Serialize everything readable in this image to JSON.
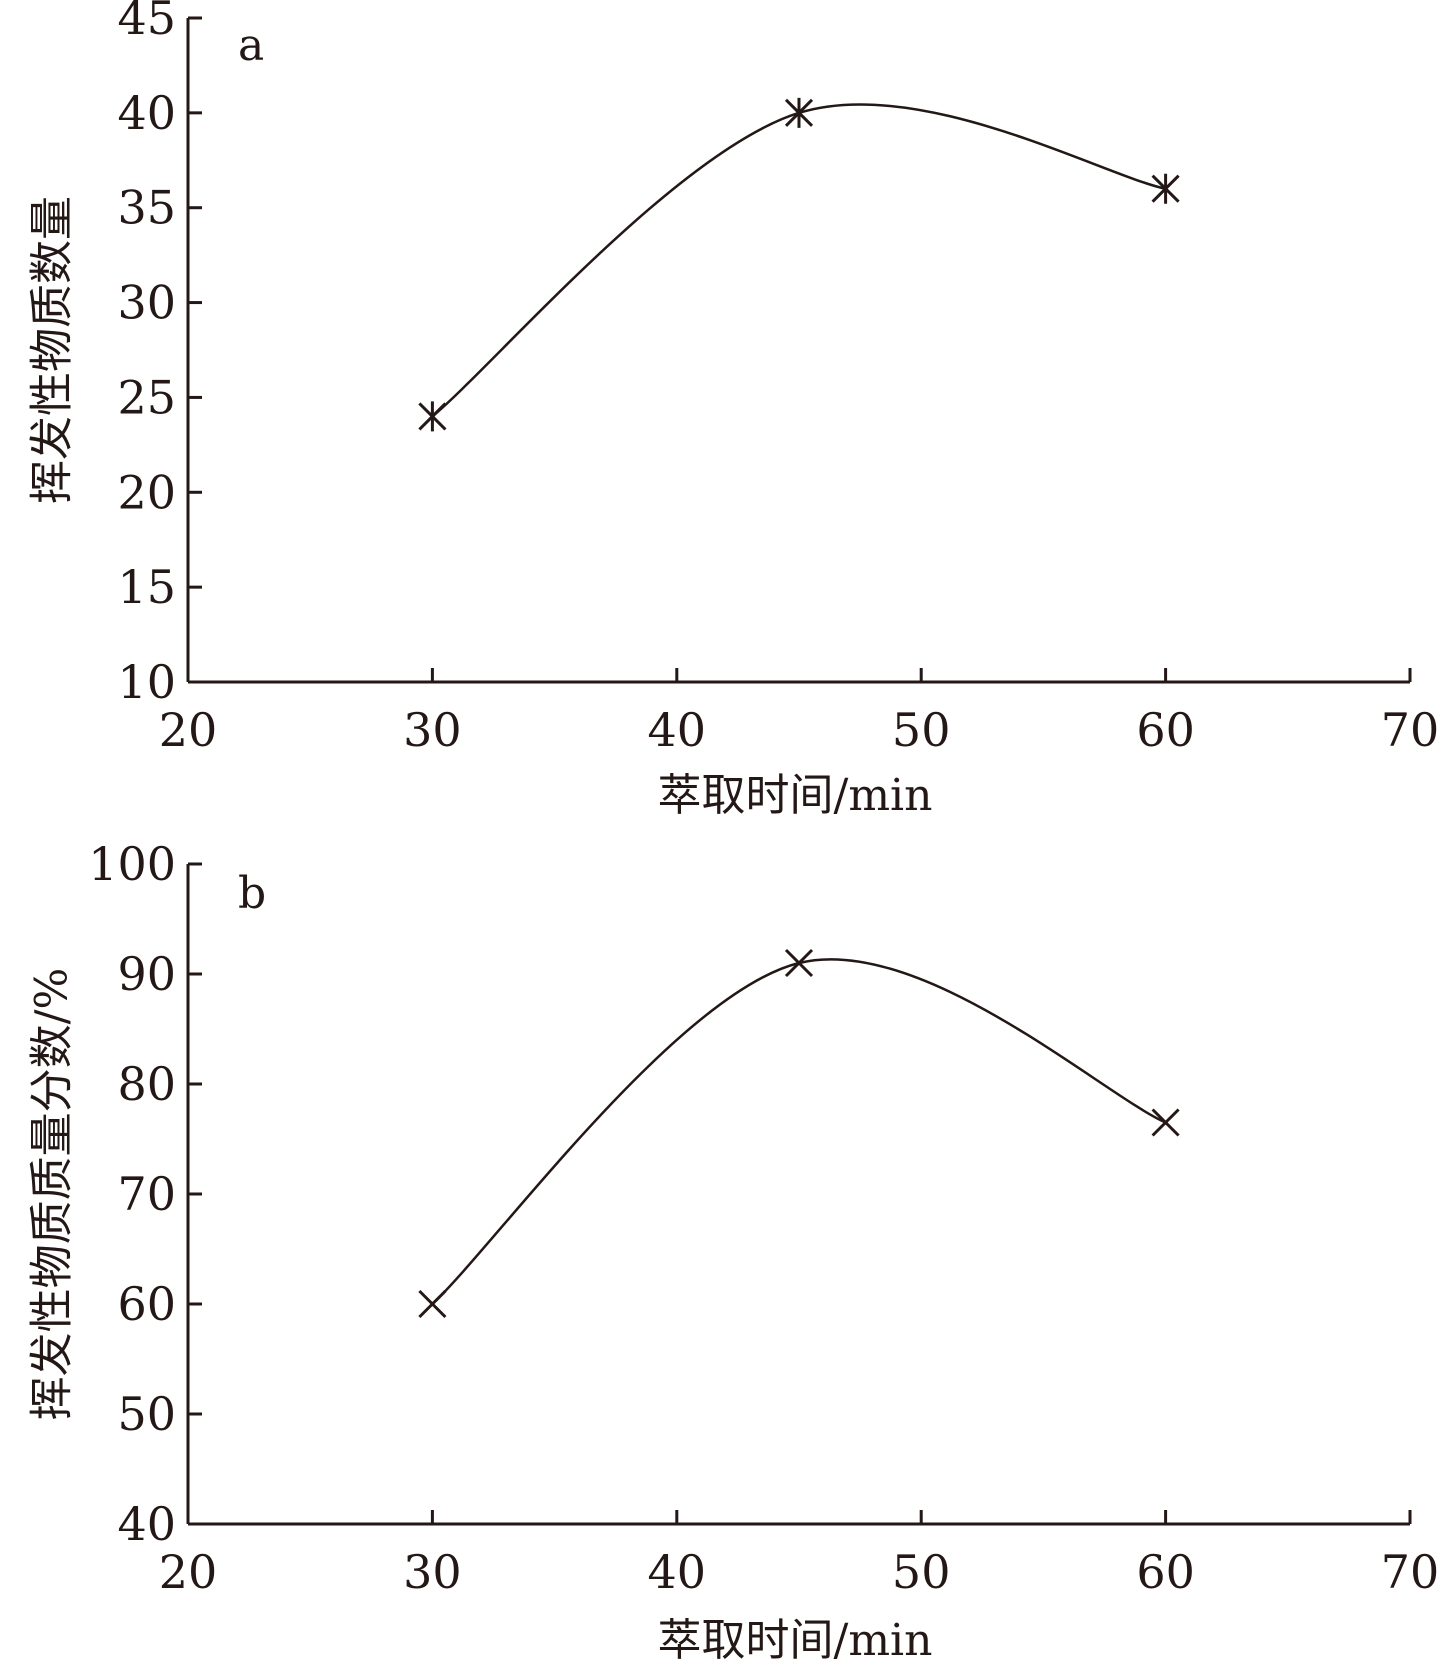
{
  "chart_data": [
    {
      "panel_label": "a",
      "type": "line",
      "xlabel": "萃取时间/min",
      "ylabel": "挥发性物质数量",
      "xlim": [
        20,
        70
      ],
      "ylim": [
        10,
        45
      ],
      "xticks": [
        20,
        30,
        40,
        50,
        60,
        70
      ],
      "yticks": [
        10,
        15,
        20,
        25,
        30,
        35,
        40,
        45
      ],
      "marker": "asterisk",
      "smooth": true,
      "series": [
        {
          "x": [
            30,
            45,
            60
          ],
          "y": [
            24,
            40,
            36
          ]
        }
      ]
    },
    {
      "panel_label": "b",
      "type": "line",
      "xlabel": "萃取时间/min",
      "ylabel": "挥发性物质质量分数/%",
      "xlim": [
        20,
        70
      ],
      "ylim": [
        40,
        100
      ],
      "xticks": [
        20,
        30,
        40,
        50,
        60,
        70
      ],
      "yticks": [
        40,
        50,
        60,
        70,
        80,
        90,
        100
      ],
      "marker": "x",
      "smooth": true,
      "series": [
        {
          "x": [
            30,
            45,
            60
          ],
          "y": [
            60,
            91,
            76.5
          ]
        }
      ]
    }
  ]
}
